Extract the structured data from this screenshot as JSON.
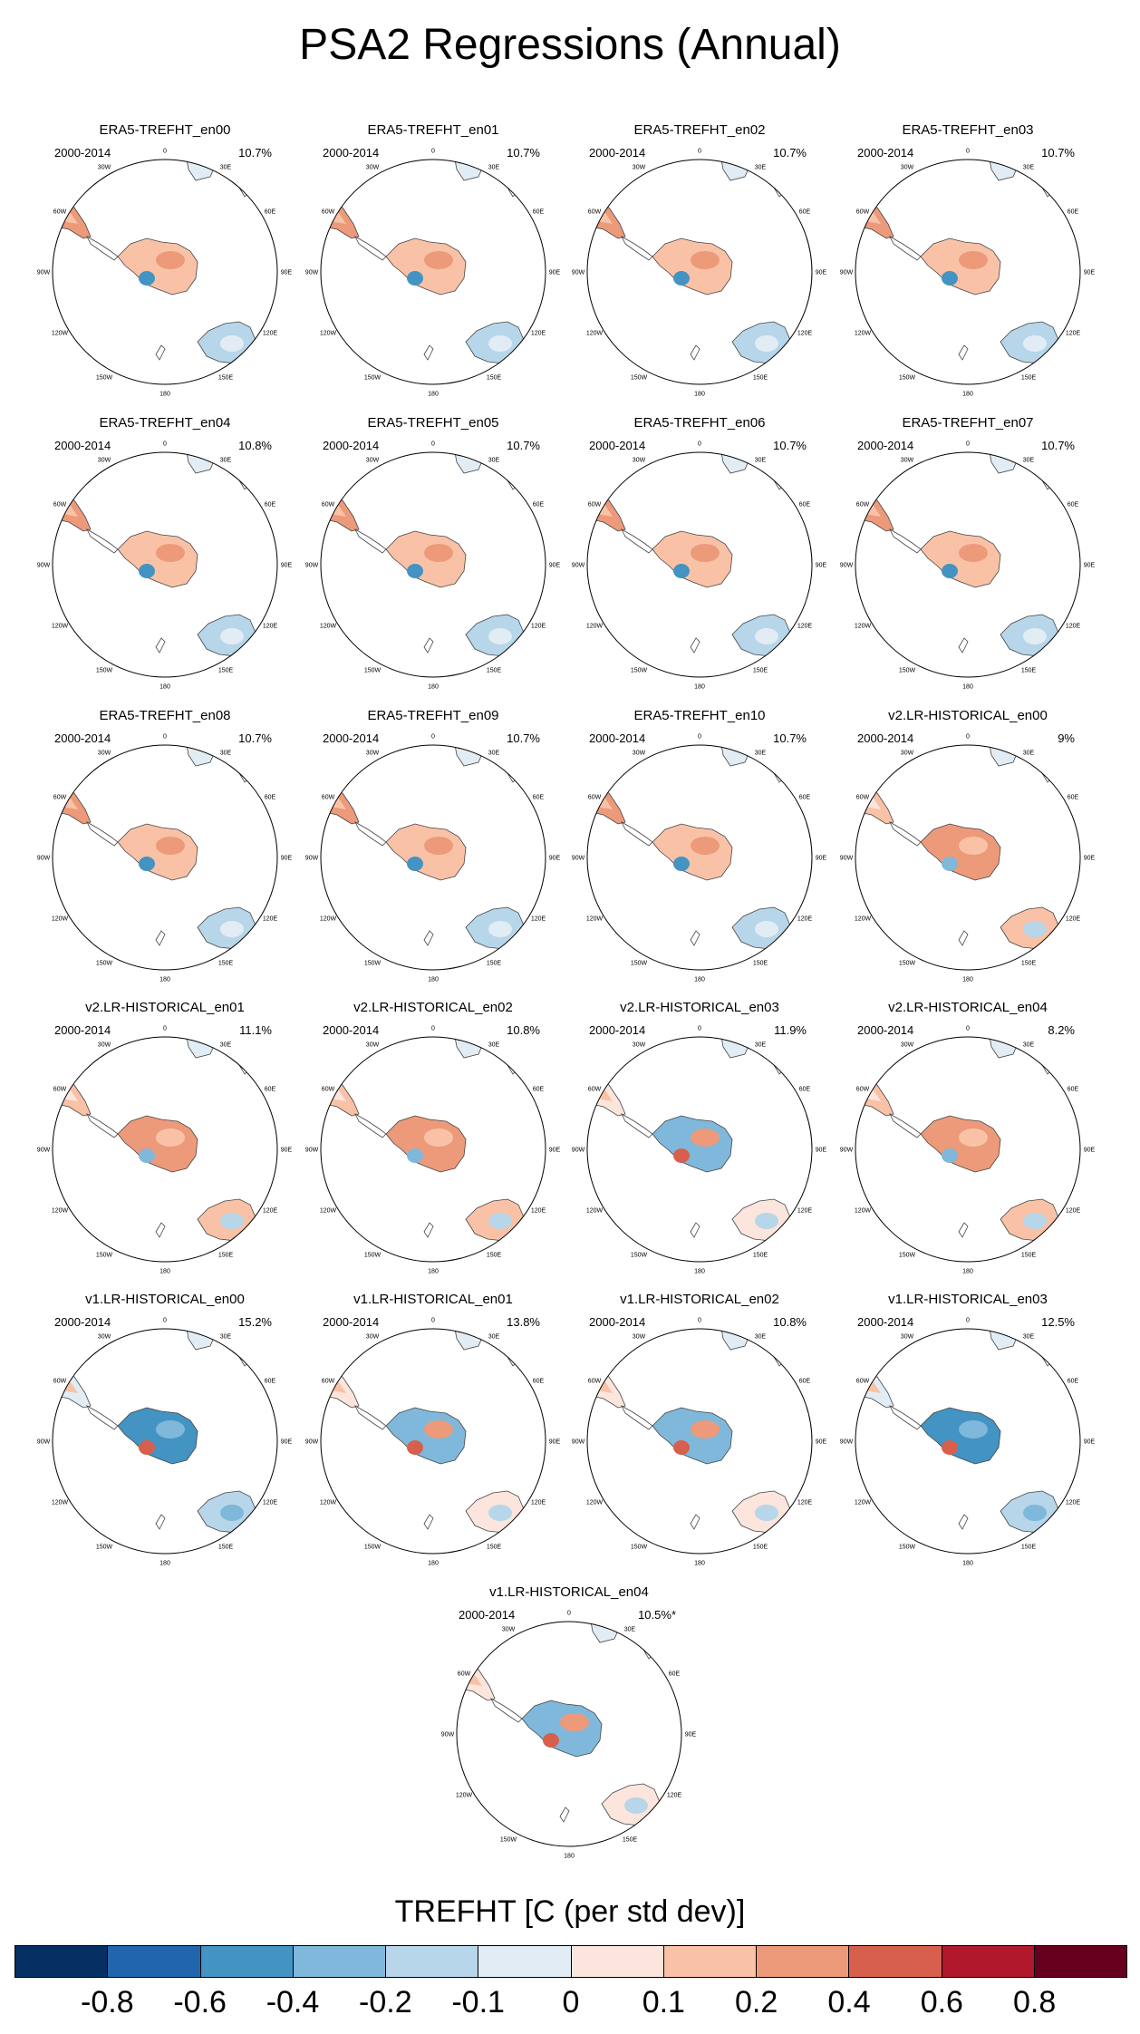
{
  "title": "PSA2 Regressions (Annual)",
  "period": "2000-2014",
  "lon_labels": [
    "0",
    "30E",
    "60E",
    "90E",
    "120E",
    "150E",
    "180",
    "150W",
    "120W",
    "90W",
    "60W",
    "30W"
  ],
  "panels": [
    {
      "name": "ERA5-TREFHT_en00",
      "pct": "10.7%",
      "pattern": "era5"
    },
    {
      "name": "ERA5-TREFHT_en01",
      "pct": "10.7%",
      "pattern": "era5"
    },
    {
      "name": "ERA5-TREFHT_en02",
      "pct": "10.7%",
      "pattern": "era5"
    },
    {
      "name": "ERA5-TREFHT_en03",
      "pct": "10.7%",
      "pattern": "era5"
    },
    {
      "name": "ERA5-TREFHT_en04",
      "pct": "10.8%",
      "pattern": "era5"
    },
    {
      "name": "ERA5-TREFHT_en05",
      "pct": "10.7%",
      "pattern": "era5"
    },
    {
      "name": "ERA5-TREFHT_en06",
      "pct": "10.7%",
      "pattern": "era5"
    },
    {
      "name": "ERA5-TREFHT_en07",
      "pct": "10.7%",
      "pattern": "era5"
    },
    {
      "name": "ERA5-TREFHT_en08",
      "pct": "10.7%",
      "pattern": "era5"
    },
    {
      "name": "ERA5-TREFHT_en09",
      "pct": "10.7%",
      "pattern": "era5"
    },
    {
      "name": "ERA5-TREFHT_en10",
      "pct": "10.7%",
      "pattern": "era5"
    },
    {
      "name": "v2.LR-HISTORICAL_en00",
      "pct": "9%",
      "pattern": "warm"
    },
    {
      "name": "v2.LR-HISTORICAL_en01",
      "pct": "11.1%",
      "pattern": "warm"
    },
    {
      "name": "v2.LR-HISTORICAL_en02",
      "pct": "10.8%",
      "pattern": "warm"
    },
    {
      "name": "v2.LR-HISTORICAL_en03",
      "pct": "11.9%",
      "pattern": "mixed"
    },
    {
      "name": "v2.LR-HISTORICAL_en04",
      "pct": "8.2%",
      "pattern": "warm"
    },
    {
      "name": "v1.LR-HISTORICAL_en00",
      "pct": "15.2%",
      "pattern": "cold"
    },
    {
      "name": "v1.LR-HISTORICAL_en01",
      "pct": "13.8%",
      "pattern": "mixed"
    },
    {
      "name": "v1.LR-HISTORICAL_en02",
      "pct": "10.8%",
      "pattern": "mixed"
    },
    {
      "name": "v1.LR-HISTORICAL_en03",
      "pct": "12.5%",
      "pattern": "cold"
    },
    {
      "name": "v1.LR-HISTORICAL_en04",
      "pct": "10.5%*",
      "pattern": "mixed"
    }
  ],
  "colorbar": {
    "title": "TREFHT [C (per std dev)]",
    "colors": [
      "#053061",
      "#2166ac",
      "#4393c3",
      "#7fb8da",
      "#b7d6ea",
      "#e2ecf4",
      "#fbe5dc",
      "#f9c2a6",
      "#ec9a7a",
      "#d6604d",
      "#b2182b",
      "#67001f"
    ],
    "labels": [
      "-0.8",
      "-0.6",
      "-0.4",
      "-0.2",
      "-0.1",
      "0",
      "0.1",
      "0.2",
      "0.4",
      "0.6",
      "0.8"
    ]
  }
}
